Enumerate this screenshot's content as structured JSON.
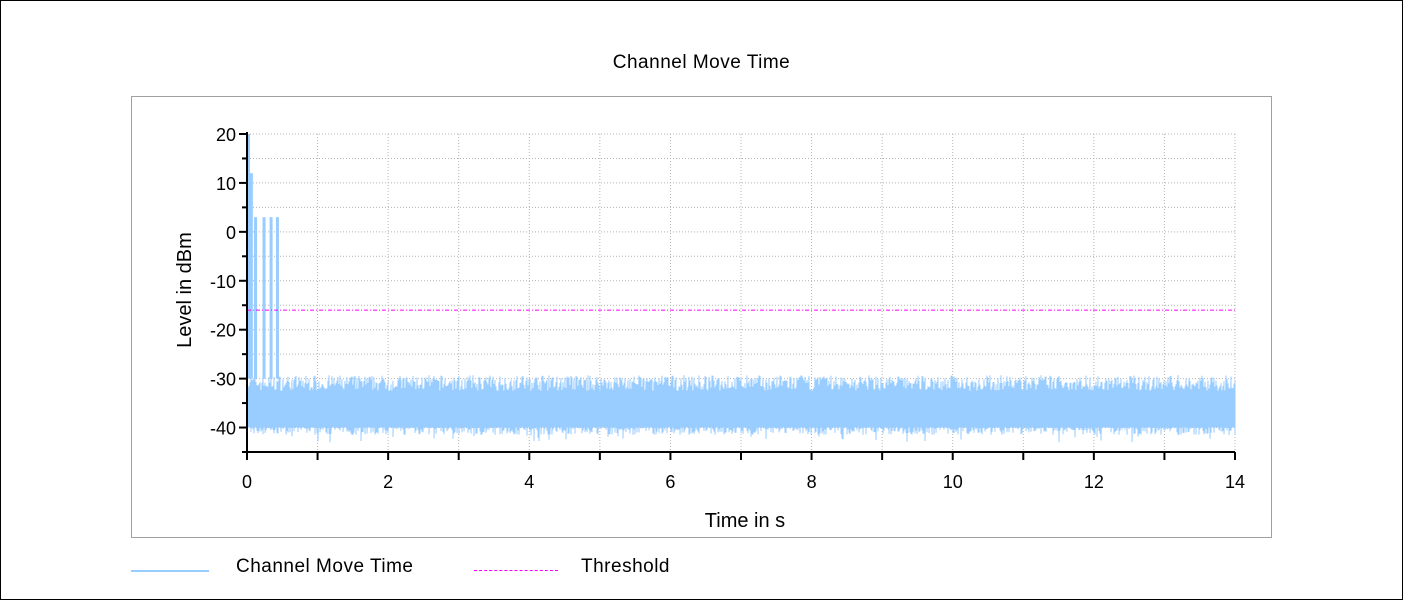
{
  "chart_data": {
    "type": "line",
    "title": "Channel Move Time",
    "xlabel": "Time in s",
    "ylabel": "Level in dBm",
    "xlim": [
      0,
      14
    ],
    "ylim": [
      -45,
      20
    ],
    "x_ticks": [
      0,
      2,
      4,
      6,
      8,
      10,
      12,
      14
    ],
    "y_ticks": [
      20,
      10,
      0,
      -10,
      -20,
      -30,
      -40
    ],
    "grid": true,
    "legend_position": "bottom-left",
    "series": [
      {
        "name": "Channel Move Time",
        "color": "#99ccff",
        "noise_floor_dbm": [
          -42,
          -30
        ],
        "bursts": [
          {
            "t": 0.0,
            "level": 20
          },
          {
            "t": 0.04,
            "level": 12
          },
          {
            "t": 0.1,
            "level": 3
          },
          {
            "t": 0.22,
            "level": 3
          },
          {
            "t": 0.32,
            "level": 3
          },
          {
            "t": 0.41,
            "level": 3
          }
        ]
      },
      {
        "name": "Threshold",
        "color": "#ff00ff",
        "style": "dash-dot",
        "value": -16
      }
    ]
  },
  "labels": {
    "title": "Channel Move Time",
    "xlabel": "Time in s",
    "ylabel": "Level in dBm",
    "legend_series1": "Channel Move Time",
    "legend_series2": "Threshold"
  }
}
